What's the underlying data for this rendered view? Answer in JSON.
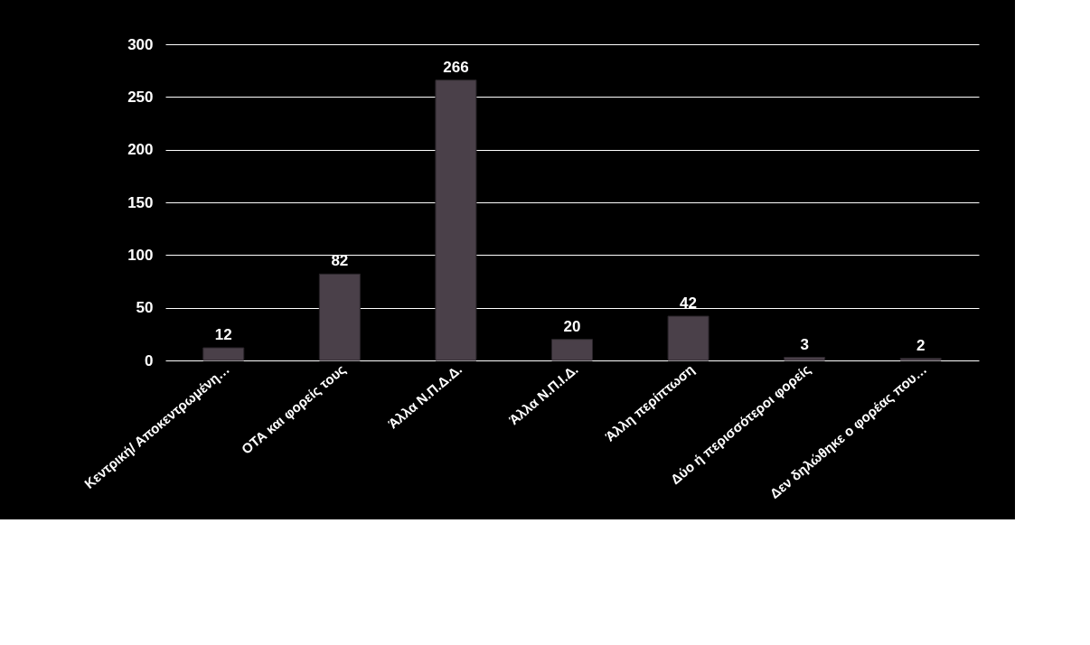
{
  "chart_data": {
    "type": "bar",
    "categories": [
      "Κεντρική/ Αποκεντρωμένη…",
      "ΟΤΑ και φορείς τους",
      "Άλλα Ν.Π.Δ.Δ.",
      "Άλλα Ν.Π.Ι.Δ.",
      "Άλλη περίπτωση",
      "Δύο ή περισσότεροι φορείς",
      "Δεν δηλώθηκε ο φορέας που…"
    ],
    "values": [
      12,
      82,
      266,
      20,
      42,
      3,
      2
    ],
    "color": "#4a4049",
    "ylim": [
      0,
      300
    ],
    "yticks": [
      0,
      50,
      100,
      150,
      200,
      250,
      300
    ],
    "grid": "y",
    "data_labels": true
  }
}
